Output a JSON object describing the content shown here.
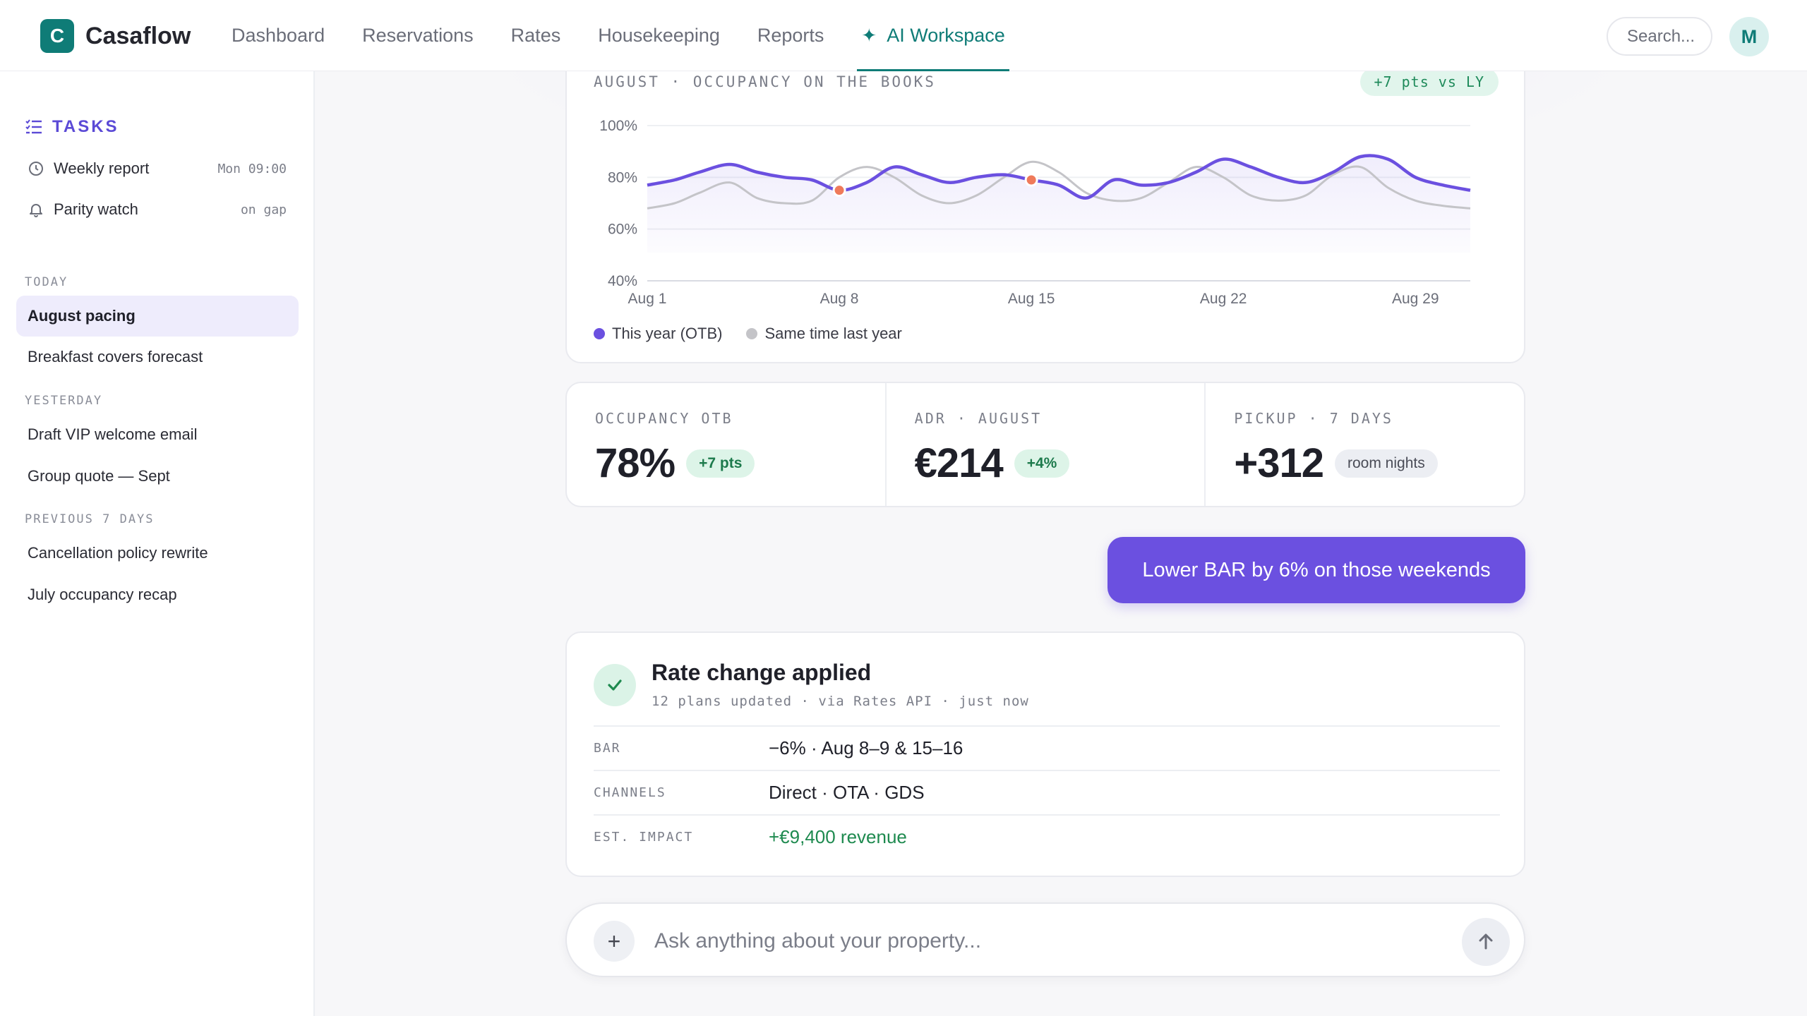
{
  "app": {
    "logo_letter": "C",
    "name": "Casaflow"
  },
  "nav": {
    "links": [
      "Dashboard",
      "Reservations",
      "Rates",
      "Housekeeping",
      "Reports"
    ],
    "active": "AI Workspace"
  },
  "search": {
    "label": "Search..."
  },
  "user": {
    "initial": "M"
  },
  "sidebar": {
    "tasks_heading": "TASKS",
    "tasks": [
      {
        "label": "Weekly report",
        "when": "Mon 09:00",
        "icon": "clock-icon"
      },
      {
        "label": "Parity watch",
        "when": "on gap",
        "icon": "bell-icon"
      }
    ],
    "groups": [
      {
        "label": "TODAY",
        "items": [
          "August pacing",
          "Breakfast covers forecast"
        ]
      },
      {
        "label": "YESTERDAY",
        "items": [
          "Draft VIP welcome email",
          "Group quote — Sept"
        ]
      },
      {
        "label": "PREVIOUS 7 DAYS",
        "items": [
          "Cancellation policy rewrite",
          "July occupancy recap"
        ]
      }
    ],
    "active_item": "August pacing"
  },
  "chart_card": {
    "title": "AUGUST · OCCUPANCY ON THE BOOKS",
    "badge": "+7 pts vs LY"
  },
  "chart_data": {
    "type": "line",
    "title": "AUGUST · OCCUPANCY ON THE BOOKS",
    "xlabel": "",
    "ylabel": "",
    "x_ticks": [
      "Aug 1",
      "Aug 8",
      "Aug 15",
      "Aug 22",
      "Aug 29"
    ],
    "y_ticks": [
      "40%",
      "60%",
      "80%",
      "100%"
    ],
    "ylim": [
      40,
      100
    ],
    "xlim": [
      1,
      31
    ],
    "grid": true,
    "legend_position": "bottom-left",
    "x": [
      1,
      2,
      2.9,
      4,
      5,
      6,
      7,
      8,
      9,
      10,
      11,
      12,
      13,
      14,
      15,
      16,
      17,
      18,
      19,
      20,
      21,
      22,
      23,
      24,
      25,
      26,
      27,
      28,
      29,
      30,
      31
    ],
    "series": [
      {
        "name": "This year (OTB)",
        "color": "#6b50e0",
        "values": [
          77,
          79,
          82,
          85,
          82,
          80,
          79,
          75,
          78,
          84,
          81,
          78,
          80,
          81,
          79,
          77,
          72,
          79,
          77,
          78,
          82,
          87,
          84,
          80,
          78,
          82,
          88,
          87,
          80,
          77,
          75
        ],
        "highlight_points": [
          8,
          15
        ]
      },
      {
        "name": "Same time last year",
        "color": "#c4c4c8",
        "values": [
          68,
          70,
          74,
          78,
          72,
          70,
          71,
          80,
          84,
          80,
          73,
          70,
          73,
          80,
          86,
          82,
          74,
          71,
          72,
          78,
          84,
          80,
          73,
          71,
          73,
          81,
          84,
          76,
          71,
          69,
          68
        ]
      }
    ],
    "highlight_color": "#ef7a5a"
  },
  "legend": [
    "This year (OTB)",
    "Same time last year"
  ],
  "kpis": [
    {
      "label": "OCCUPANCY OTB",
      "value": "78%",
      "chip": "+7 pts",
      "chip_style": "green"
    },
    {
      "label": "ADR · AUGUST",
      "value": "€214",
      "chip": "+4%",
      "chip_style": "green"
    },
    {
      "label": "PICKUP · 7 DAYS",
      "value": "+312",
      "chip": "room nights",
      "chip_style": "grey"
    }
  ],
  "user_message": "Lower BAR by 6% on those weekends",
  "result": {
    "title": "Rate change applied",
    "subtitle": "12 plans updated · via Rates API · just now",
    "rows": [
      {
        "key": "BAR",
        "value": "−6% · Aug 8–9 & 15–16"
      },
      {
        "key": "CHANNELS",
        "value": "Direct · OTA · GDS"
      },
      {
        "key": "EST. IMPACT",
        "value": "+€9,400 revenue"
      }
    ]
  },
  "composer": {
    "placeholder": "Ask anything about your property..."
  },
  "colors": {
    "accent": "#0f7c77",
    "brand_purple": "#6b50e0",
    "positive": "#1e8a4f"
  }
}
